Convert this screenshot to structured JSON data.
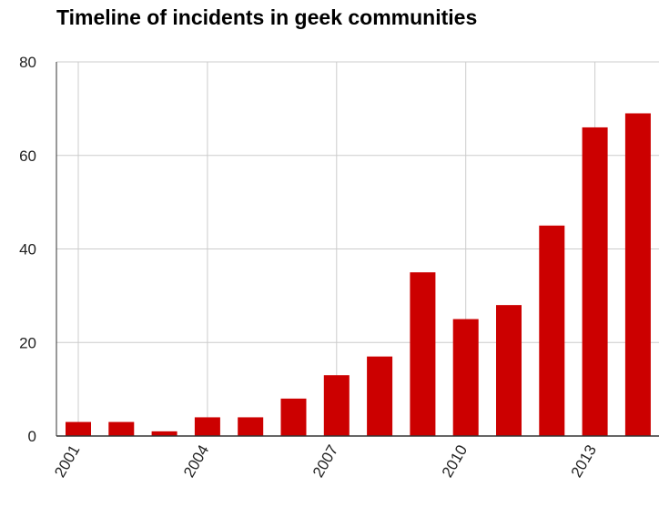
{
  "chart_data": {
    "type": "bar",
    "title": "Timeline of incidents in geek communities",
    "xlabel": "",
    "ylabel": "",
    "categories": [
      "2001",
      "2002",
      "2003",
      "2004",
      "2005",
      "2006",
      "2007",
      "2008",
      "2009",
      "2010",
      "2011",
      "2012",
      "2013",
      "2014"
    ],
    "x_tick_labels": [
      "2001",
      "2004",
      "2007",
      "2010",
      "2013"
    ],
    "values": [
      3,
      3,
      1,
      4,
      4,
      8,
      13,
      17,
      35,
      25,
      28,
      45,
      66,
      69
    ],
    "ylim": [
      0,
      80
    ],
    "y_ticks": [
      0,
      20,
      40,
      60,
      80
    ],
    "grid": true,
    "legend": "none",
    "bar_color": "#cc0000",
    "grid_color": "#cccccc",
    "axis_color": "#333333"
  }
}
